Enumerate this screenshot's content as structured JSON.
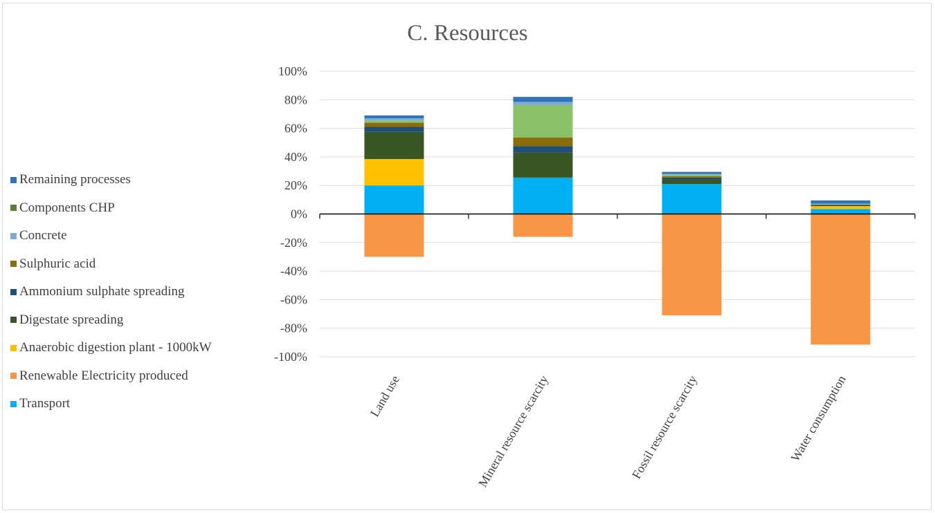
{
  "chart_data": {
    "type": "bar",
    "stacked": true,
    "title": "C. Resources",
    "xlabel": "",
    "ylabel": "",
    "ylim": [
      -100,
      100
    ],
    "y_ticks": [
      "100%",
      "80%",
      "60%",
      "40%",
      "20%",
      "0%",
      "-20%",
      "-40%",
      "-60%",
      "-80%",
      "-100%"
    ],
    "y_tick_values": [
      100,
      80,
      60,
      40,
      20,
      0,
      -20,
      -40,
      -60,
      -80,
      -100
    ],
    "grid": true,
    "legend_position": "left",
    "categories": [
      "Land use",
      "Mineral resource scarcity",
      "Fossil resource scarcity",
      "Water consumption"
    ],
    "series": [
      {
        "name": "Transport",
        "color": "#00b0f0",
        "values": [
          20,
          25.5,
          21,
          3.5
        ]
      },
      {
        "name": "Renewable Electricity produced",
        "color": "#f79646",
        "values": [
          -30,
          -16,
          -71,
          -91.5
        ]
      },
      {
        "name": "Anaerobic digestion plant - 1000kW",
        "color": "#ffc000",
        "values": [
          18.5,
          0,
          0,
          2
        ]
      },
      {
        "name": "Digestate spreading",
        "color": "#375623",
        "values": [
          19,
          17.5,
          3,
          0.3
        ]
      },
      {
        "name": "Ammonium sulphate spreading",
        "color": "#1f4e79",
        "values": [
          3.5,
          4.5,
          1.5,
          0.5
        ]
      },
      {
        "name": "Sulphuric acid",
        "color": "#8a6d0b",
        "values": [
          3,
          6,
          1,
          0.3
        ]
      },
      {
        "name": "Components CHP",
        "color": "#8bc269",
        "values": [
          1.5,
          23,
          1,
          0.3
        ]
      },
      {
        "name": "Concrete",
        "color": "#7ea9d9",
        "values": [
          1.5,
          2,
          0.5,
          0.3
        ]
      },
      {
        "name": "Remaining processes",
        "color": "#2e75b6",
        "values": [
          2,
          3.5,
          1.5,
          2.3
        ]
      }
    ],
    "extra_colors": {
      "Components CHP marker": "#548235"
    },
    "legend_order": [
      "Remaining processes",
      "Components CHP",
      "Concrete",
      "Sulphuric acid",
      "Ammonium sulphate spreading",
      "Digestate spreading",
      "Anaerobic digestion plant - 1000kW",
      "Renewable Electricity produced",
      "Transport"
    ]
  }
}
